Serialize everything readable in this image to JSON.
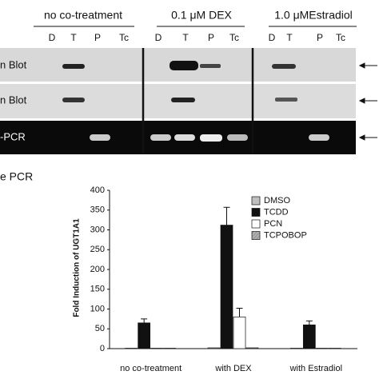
{
  "gel": {
    "headers": [
      "no co-treatment",
      "0.1 μM DEX",
      "1.0 μMEstradiol"
    ],
    "lanes": [
      "D",
      "T",
      "P",
      "Tc"
    ],
    "rows": [
      "n Blot",
      "n Blot",
      "-PCR"
    ]
  },
  "section_label": "e PCR",
  "chart_data": {
    "type": "bar",
    "y_label": "Fold Induction of UGT1A1",
    "categories": [
      "no co-treatment",
      "with DEX",
      "with Estradiol"
    ],
    "series": [
      {
        "name": "DMSO",
        "color": "#c0c0c0",
        "values": [
          1,
          2,
          1
        ],
        "errors": [
          null,
          null,
          null
        ]
      },
      {
        "name": "TCDD",
        "color": "#111111",
        "values": [
          65,
          312,
          60
        ],
        "errors": [
          10,
          45,
          10
        ]
      },
      {
        "name": "PCN",
        "color": "#ffffff",
        "values": [
          1,
          80,
          1
        ],
        "errors": [
          null,
          22,
          null
        ]
      },
      {
        "name": "TCPOBOP",
        "color": "#a8a8a8",
        "values": [
          1,
          2,
          1
        ],
        "errors": [
          null,
          null,
          null
        ]
      }
    ],
    "ylim": [
      0,
      400
    ],
    "yticks": [
      0,
      50,
      100,
      150,
      200,
      250,
      300,
      350,
      400
    ]
  }
}
